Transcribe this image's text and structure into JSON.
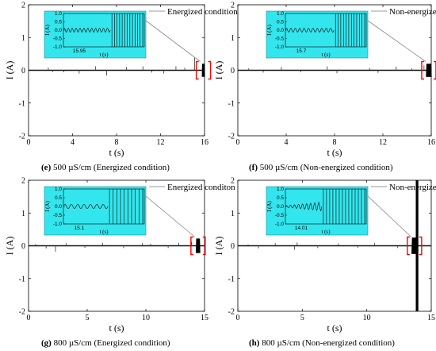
{
  "chart_data": [
    {
      "type": "line",
      "panel_letter": "e",
      "caption_text": "500 µS/cm (Energized condition)",
      "xlabel": "t (s)",
      "ylabel": "I (A)",
      "xlim": [
        0,
        16
      ],
      "ylim": [
        -2,
        2
      ],
      "xticks": [
        0,
        4,
        8,
        12,
        16
      ],
      "yticks": [
        -2,
        -1,
        0,
        1,
        2
      ],
      "legend": "Energized condition",
      "legend_placement": "top-right",
      "spikes": [
        {
          "x": 0.5,
          "y": 0.02
        },
        {
          "x": 1.8,
          "y": 0.08
        },
        {
          "x": 2.2,
          "y": -0.05
        },
        {
          "x": 3.2,
          "y": -0.06
        },
        {
          "x": 4.6,
          "y": -0.1
        },
        {
          "x": 6.1,
          "y": 0.12
        },
        {
          "x": 7.1,
          "y": -0.16
        },
        {
          "x": 8.9,
          "y": 0.1
        },
        {
          "x": 10.4,
          "y": 0.12
        },
        {
          "x": 11.2,
          "y": -0.07
        },
        {
          "x": 12.3,
          "y": -0.1
        },
        {
          "x": 13.4,
          "y": 0.12
        },
        {
          "x": 14.2,
          "y": 0.08
        },
        {
          "x": 15.1,
          "y": 0.4
        }
      ],
      "burst": {
        "x_start": 15.8,
        "x_end": 16.0,
        "amplitude": 0.2
      },
      "inset": {
        "xlabel": "t (s)",
        "ylabel": "I (A)",
        "yticks": [
          "1.0",
          "0.5",
          "0.0",
          "-0.5",
          "-1.0"
        ],
        "xtick": "15.95",
        "ripple_periods": 12,
        "ripple_fraction": 0.58,
        "oscillation_periods": 6.5
      }
    },
    {
      "type": "line",
      "panel_letter": "f",
      "caption_text": "500 µS/cm (Non-energized condition)",
      "xlabel": "t (s)",
      "ylabel": "I (A)",
      "xlim": [
        0,
        16
      ],
      "ylim": [
        -2,
        2
      ],
      "xticks": [
        0,
        4,
        8,
        12,
        16
      ],
      "yticks": [
        -2,
        -1,
        0,
        1,
        2
      ],
      "legend": "Non-energized condition",
      "legend_placement": "top-right",
      "spikes": [
        {
          "x": 0.9,
          "y": 0.06
        },
        {
          "x": 2.1,
          "y": -0.07
        },
        {
          "x": 3.6,
          "y": 0.1
        },
        {
          "x": 5.2,
          "y": -0.06
        },
        {
          "x": 7.4,
          "y": 0.12
        },
        {
          "x": 8.2,
          "y": -0.09
        },
        {
          "x": 10.9,
          "y": 0.07
        },
        {
          "x": 11.6,
          "y": -0.08
        },
        {
          "x": 13.1,
          "y": 0.11
        },
        {
          "x": 14.4,
          "y": 0.06
        },
        {
          "x": 15.2,
          "y": -0.12
        },
        {
          "x": 15.4,
          "y": 0.15
        }
      ],
      "burst": {
        "x_start": 15.6,
        "x_end": 16.0,
        "amplitude": 0.2
      },
      "inset": {
        "xlabel": "t (s)",
        "ylabel": "I (A)",
        "yticks": [
          "1.0",
          "0.5",
          "0.0",
          "-0.5",
          "-1.0"
        ],
        "xtick": "15.7",
        "ripple_periods": 11,
        "ripple_fraction": 0.6,
        "oscillation_periods": 6
      }
    },
    {
      "type": "line",
      "panel_letter": "g",
      "caption_text": "800 µS/cm (Energized condition)",
      "xlabel": "t (s)",
      "ylabel": "I (A)",
      "xlim": [
        0,
        15
      ],
      "ylim": [
        -2,
        2
      ],
      "xticks": [
        0,
        5,
        10,
        15
      ],
      "yticks": [
        -2,
        -1,
        0,
        1,
        2
      ],
      "legend": "Energized conditon",
      "legend_placement": "top-right",
      "spikes": [
        {
          "x": 0.6,
          "y": 0.05
        },
        {
          "x": 1.5,
          "y": -0.08
        },
        {
          "x": 2.3,
          "y": -0.18
        },
        {
          "x": 3.2,
          "y": 0.08
        },
        {
          "x": 4.8,
          "y": -0.06
        },
        {
          "x": 6.3,
          "y": 0.09
        },
        {
          "x": 8.1,
          "y": -0.07
        },
        {
          "x": 9.7,
          "y": 0.08
        },
        {
          "x": 10.4,
          "y": 0.06
        },
        {
          "x": 11.9,
          "y": -0.07
        },
        {
          "x": 12.8,
          "y": 0.09
        },
        {
          "x": 13.9,
          "y": 0.12
        }
      ],
      "burst": {
        "x_start": 14.3,
        "x_end": 14.6,
        "amplitude": 0.22
      },
      "inset": {
        "xlabel": "t (s)",
        "ylabel": "I (A)",
        "yticks": [
          "1.0",
          "0.5",
          "0.0",
          "-0.5",
          "-1.0"
        ],
        "xtick": "15.1",
        "ripple_periods": 7,
        "ripple_fraction": 0.55,
        "oscillation_periods": 5
      }
    },
    {
      "type": "line",
      "panel_letter": "h",
      "caption_text": "800 µS/cm (Non-energized condition)",
      "xlabel": "t (s)",
      "ylabel": "I (A)",
      "xlim": [
        0,
        15
      ],
      "ylim": [
        -2,
        2
      ],
      "xticks": [
        0,
        5,
        10,
        15
      ],
      "yticks": [
        -2,
        -1,
        0,
        1,
        2
      ],
      "legend": "Non-energized condition",
      "legend_placement": "top-right",
      "spikes": [
        {
          "x": 0.8,
          "y": 0.04
        },
        {
          "x": 1.6,
          "y": -0.08
        },
        {
          "x": 2.9,
          "y": 0.08
        },
        {
          "x": 4.4,
          "y": -0.12
        },
        {
          "x": 4.6,
          "y": 0.1
        },
        {
          "x": 6.2,
          "y": -0.07
        },
        {
          "x": 7.8,
          "y": 0.07
        },
        {
          "x": 9.3,
          "y": -0.06
        },
        {
          "x": 10.6,
          "y": 0.08
        },
        {
          "x": 12.4,
          "y": -0.07
        }
      ],
      "burst": {
        "x_start": 13.5,
        "x_end": 13.9,
        "amplitude": 0.25
      },
      "full_scale_band": {
        "x_start": 13.8,
        "x_end": 14.0
      },
      "inset": {
        "xlabel": "t (s)",
        "ylabel": "I (A)",
        "yticks": [
          "1.0",
          "0.5",
          "0.0",
          "-0.5",
          "-1.0"
        ],
        "xtick": "14.01",
        "ripple_periods": 9,
        "ripple_fraction": 0.45,
        "oscillation_periods": 7,
        "growing_ripple": true
      }
    }
  ],
  "colors": {
    "inset_fill": "#33e6ee",
    "axis": "#000000",
    "marker_bracket": "#ff0000",
    "leader_line": "#888888"
  }
}
